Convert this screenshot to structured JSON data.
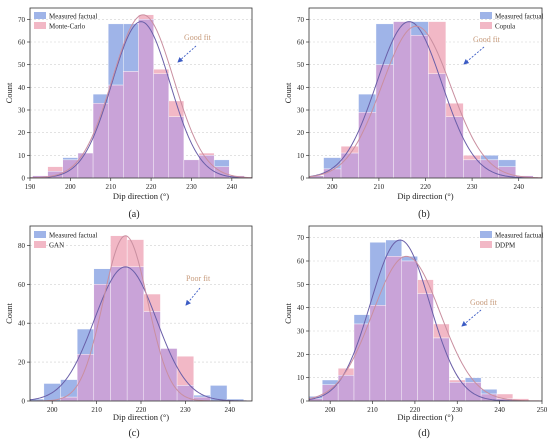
{
  "figure": {
    "colors": {
      "measured": "#9fb4e8",
      "synthetic": "#f2b8c6",
      "overlap": "#c9a3d8",
      "curve_measured": "#6a5fa8",
      "curve_synthetic": "#c98fa0",
      "grid": "#d0d0d0",
      "arrow": "#3b5bc4",
      "fit_label": "#c79b7c"
    }
  },
  "chart_data": [
    {
      "type": "bar",
      "caption": "(a)",
      "xlabel": "Dip direction (°)",
      "ylabel": "Count",
      "xlim": [
        190,
        245
      ],
      "ylim": [
        0,
        75
      ],
      "xticks": [
        190,
        200,
        210,
        220,
        230,
        240
      ],
      "yticks": [
        0,
        10,
        20,
        30,
        40,
        50,
        60,
        70
      ],
      "bin_width": 3.75,
      "x": [
        192.5,
        196.25,
        200,
        203.75,
        207.5,
        211.25,
        215,
        218.75,
        222.5,
        226.25,
        230,
        233.75,
        237.5,
        241.25
      ],
      "series": [
        {
          "name": "Measured factual",
          "role": "measured",
          "values": [
            1,
            3,
            9,
            11,
            37,
            68,
            68,
            70,
            46,
            27,
            8,
            10,
            8,
            1
          ]
        },
        {
          "name": "Monte-Carlo",
          "role": "synthetic",
          "values": [
            1,
            5,
            8,
            11,
            33,
            41,
            47,
            72,
            48,
            34,
            8,
            11,
            5,
            1
          ]
        }
      ],
      "fits": [
        {
          "role": "measured",
          "mean": 217.5,
          "sd": 7.2,
          "peak": 69
        },
        {
          "role": "synthetic",
          "mean": 218.0,
          "sd": 7.6,
          "peak": 72
        }
      ],
      "annotation": "Good fit"
    },
    {
      "type": "bar",
      "caption": "(b)",
      "xlabel": "Dip direction (°)",
      "ylabel": "Count",
      "xlim": [
        195,
        245
      ],
      "ylim": [
        0,
        75
      ],
      "xticks": [
        200,
        210,
        220,
        230,
        240
      ],
      "yticks": [
        0,
        10,
        20,
        30,
        40,
        50,
        60,
        70
      ],
      "bin_width": 3.75,
      "x": [
        196.25,
        200,
        203.75,
        207.5,
        211.25,
        215,
        218.75,
        222.5,
        226.25,
        230,
        233.75,
        237.5,
        241.25
      ],
      "series": [
        {
          "name": "Measured factual",
          "role": "measured",
          "values": [
            1,
            9,
            11,
            37,
            68,
            69,
            69,
            46,
            27,
            8,
            10,
            8,
            1
          ]
        },
        {
          "name": "Copula",
          "role": "synthetic",
          "values": [
            1,
            4,
            14,
            29,
            50,
            69,
            63,
            69,
            33,
            10,
            8,
            5,
            1
          ]
        }
      ],
      "fits": [
        {
          "role": "measured",
          "mean": 216.5,
          "sd": 7.0,
          "peak": 69
        },
        {
          "role": "synthetic",
          "mean": 218.0,
          "sd": 7.4,
          "peak": 67
        }
      ],
      "annotation": "Good fit"
    },
    {
      "type": "bar",
      "caption": "(c)",
      "xlabel": "Dip direction (°)",
      "ylabel": "Count",
      "xlim": [
        195,
        245
      ],
      "ylim": [
        0,
        90
      ],
      "xticks": [
        200,
        210,
        220,
        230,
        240
      ],
      "yticks": [
        0,
        20,
        40,
        60,
        80
      ],
      "bin_width": 3.75,
      "x": [
        196.25,
        200,
        203.75,
        207.5,
        211.25,
        215,
        218.75,
        222.5,
        226.25,
        230,
        233.75,
        237.5,
        241.25
      ],
      "series": [
        {
          "name": "Measured factual",
          "role": "measured",
          "values": [
            1,
            9,
            11,
            37,
            68,
            69,
            69,
            46,
            27,
            8,
            3,
            8,
            1
          ]
        },
        {
          "name": "GAN",
          "role": "synthetic",
          "values": [
            0,
            0,
            2,
            24,
            60,
            85,
            83,
            55,
            27,
            23,
            2,
            0,
            0
          ]
        }
      ],
      "fits": [
        {
          "role": "measured",
          "mean": 216.5,
          "sd": 7.0,
          "peak": 69
        },
        {
          "role": "synthetic",
          "mean": 216.5,
          "sd": 5.0,
          "peak": 85
        }
      ],
      "annotation": "Poor fit"
    },
    {
      "type": "bar",
      "caption": "(d)",
      "xlabel": "Dip direction (°)",
      "ylabel": "Count",
      "xlim": [
        195,
        250
      ],
      "ylim": [
        0,
        75
      ],
      "xticks": [
        200,
        210,
        220,
        230,
        240,
        250
      ],
      "yticks": [
        0,
        10,
        20,
        30,
        40,
        50,
        60,
        70
      ],
      "bin_width": 3.75,
      "x": [
        196.25,
        200,
        203.75,
        207.5,
        211.25,
        215,
        218.75,
        222.5,
        226.25,
        230,
        233.75,
        237.5,
        241.25,
        245
      ],
      "series": [
        {
          "name": "Measured factual",
          "role": "measured",
          "values": [
            2,
            9,
            11,
            37,
            68,
            69,
            62,
            46,
            27,
            8,
            10,
            5,
            1,
            0
          ]
        },
        {
          "name": "DDPM",
          "role": "synthetic",
          "values": [
            1,
            7,
            14,
            33,
            41,
            62,
            60,
            52,
            33,
            9,
            8,
            3,
            3,
            1
          ]
        }
      ],
      "fits": [
        {
          "role": "measured",
          "mean": 216.5,
          "sd": 7.0,
          "peak": 69
        },
        {
          "role": "synthetic",
          "mean": 218.0,
          "sd": 8.0,
          "peak": 62
        }
      ],
      "annotation": "Good fit"
    }
  ]
}
